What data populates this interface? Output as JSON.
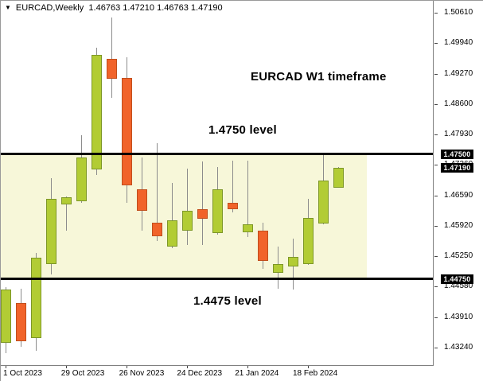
{
  "window": {
    "title": {
      "symbol": "EURCAD,Weekly",
      "open": "1.46763",
      "high": "1.47210",
      "low": "1.46763",
      "close": "1.47190"
    }
  },
  "annotations": {
    "timeframe_label": "EURCAD W1 timeframe",
    "upper_level_label": "1.4750 level",
    "lower_level_label": "1.4475 level"
  },
  "price_axis": {
    "tick_labels": [
      "1.50610",
      "1.49940",
      "1.49270",
      "1.48600",
      "1.47930",
      "1.47260",
      "1.46590",
      "1.45920",
      "1.45250",
      "1.44580",
      "1.43910",
      "1.43240"
    ],
    "badges": [
      {
        "label": "1.47500",
        "price": 1.475
      },
      {
        "label": "1.47190",
        "price": 1.4719
      },
      {
        "label": "1.44750",
        "price": 1.4475
      }
    ]
  },
  "time_axis": {
    "tick_labels": [
      {
        "text": "1 Oct 2023",
        "index": 0
      },
      {
        "text": "29 Oct 2023",
        "index": 4
      },
      {
        "text": "26 Nov 2023",
        "index": 8
      },
      {
        "text": "24 Dec 2023",
        "index": 12
      },
      {
        "text": "21 Jan 2024",
        "index": 16
      },
      {
        "text": "18 Feb 2024",
        "index": 20
      }
    ]
  },
  "chart_data": {
    "type": "candlestick",
    "symbol": "EURCAD",
    "timeframe": "W1",
    "title": "EURCAD W1 timeframe",
    "view_price_top": 1.50873,
    "view_price_bottom": 1.42854,
    "current_price": 1.4719,
    "levels": [
      {
        "price": 1.475,
        "label": "1.4750 level"
      },
      {
        "price": 1.4475,
        "label": "1.4475 level"
      }
    ],
    "highlight_zone": {
      "price_top": 1.475,
      "price_bottom": 1.4475,
      "color": "#f7f7d9",
      "x_index_start": 0,
      "x_index_end": 24
    },
    "colors": {
      "bull_fill": "#b2cc34",
      "bull_border": "#7d9727",
      "bear_fill": "#f1632a",
      "bear_border": "#c14e1c",
      "wick": "#8c8c8c",
      "level_line": "#000000",
      "badge_bg": "#000000",
      "badge_text": "#ffffff"
    },
    "candles": [
      {
        "date": "2023-10-01",
        "open": 1.43345,
        "high": 1.44577,
        "low": 1.43116,
        "close": 1.44524
      },
      {
        "date": "2023-10-08",
        "open": 1.44225,
        "high": 1.44541,
        "low": 1.43257,
        "close": 1.4338
      },
      {
        "date": "2023-10-15",
        "open": 1.4345,
        "high": 1.45315,
        "low": 1.43169,
        "close": 1.4521
      },
      {
        "date": "2023-10-22",
        "open": 1.45069,
        "high": 1.46968,
        "low": 1.44858,
        "close": 1.46511
      },
      {
        "date": "2023-10-29",
        "open": 1.46388,
        "high": 1.46564,
        "low": 1.45808,
        "close": 1.46546
      },
      {
        "date": "2023-11-05",
        "open": 1.46459,
        "high": 1.47919,
        "low": 1.46424,
        "close": 1.47426
      },
      {
        "date": "2023-11-12",
        "open": 1.47162,
        "high": 1.49836,
        "low": 1.47039,
        "close": 1.49678
      },
      {
        "date": "2023-11-19",
        "open": 1.4959,
        "high": 1.50504,
        "low": 1.48745,
        "close": 1.4915
      },
      {
        "date": "2023-11-26",
        "open": 1.49168,
        "high": 1.49625,
        "low": 1.46424,
        "close": 1.46811
      },
      {
        "date": "2023-12-03",
        "open": 1.46723,
        "high": 1.47426,
        "low": 1.45808,
        "close": 1.46248
      },
      {
        "date": "2023-12-10",
        "open": 1.45984,
        "high": 1.47743,
        "low": 1.4558,
        "close": 1.45685
      },
      {
        "date": "2023-12-17",
        "open": 1.45457,
        "high": 1.46863,
        "low": 1.45421,
        "close": 1.46037
      },
      {
        "date": "2023-12-24",
        "open": 1.45808,
        "high": 1.4718,
        "low": 1.45492,
        "close": 1.46248
      },
      {
        "date": "2023-12-31",
        "open": 1.46283,
        "high": 1.47338,
        "low": 1.45492,
        "close": 1.46072
      },
      {
        "date": "2024-01-07",
        "open": 1.45756,
        "high": 1.47215,
        "low": 1.4572,
        "close": 1.46723
      },
      {
        "date": "2024-01-14",
        "open": 1.46424,
        "high": 1.47356,
        "low": 1.46213,
        "close": 1.46283
      },
      {
        "date": "2024-01-21",
        "open": 1.45773,
        "high": 1.47356,
        "low": 1.45668,
        "close": 1.45949
      },
      {
        "date": "2024-01-28",
        "open": 1.45808,
        "high": 1.45984,
        "low": 1.44964,
        "close": 1.4514
      },
      {
        "date": "2024-02-04",
        "open": 1.44893,
        "high": 1.45457,
        "low": 1.44542,
        "close": 1.45069
      },
      {
        "date": "2024-02-11",
        "open": 1.45017,
        "high": 1.45632,
        "low": 1.44524,
        "close": 1.45228
      },
      {
        "date": "2024-02-18",
        "open": 1.45069,
        "high": 1.46512,
        "low": 1.45052,
        "close": 1.4609
      },
      {
        "date": "2024-02-25",
        "open": 1.45966,
        "high": 1.47532,
        "low": 1.45949,
        "close": 1.46917
      },
      {
        "date": "2024-03-03",
        "open": 1.46763,
        "high": 1.4721,
        "low": 1.46763,
        "close": 1.4719
      }
    ]
  }
}
